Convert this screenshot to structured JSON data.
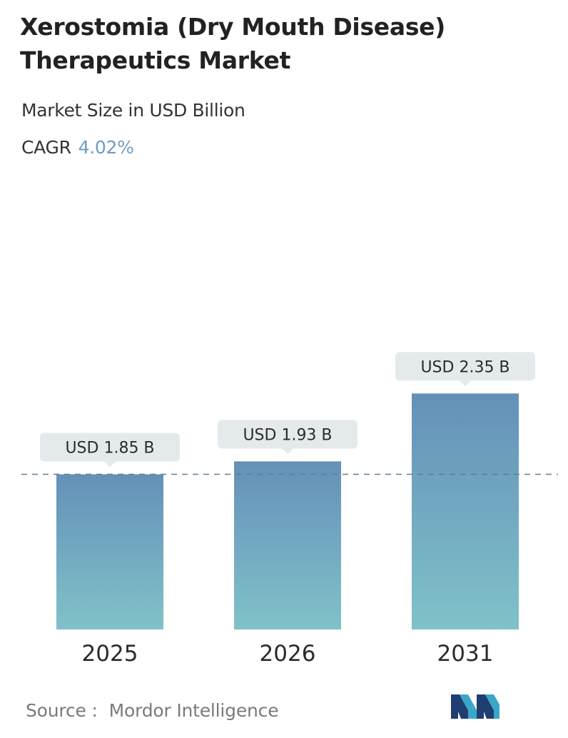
{
  "header": {
    "title": "Xerostomia (Dry Mouth Disease) Therapeutics Market",
    "subtitle": "Market Size in USD Billion",
    "cagr_label": "CAGR",
    "cagr_value": "4.02%"
  },
  "footer": {
    "source_label": "Source :",
    "source_name": "Mordor Intelligence"
  },
  "colors": {
    "bar_top": "#6490b8",
    "bar_bottom": "#80c2c9",
    "label_bg": "#e4eaec",
    "accent": "#6f9cc4",
    "reference_line": "#5b7f99"
  },
  "chart_data": {
    "type": "bar",
    "categories": [
      "2025",
      "2026",
      "2031"
    ],
    "values": [
      1.85,
      1.93,
      2.35
    ],
    "data_labels": [
      "USD 1.85 B",
      "USD 1.93 B",
      "USD 2.35 B"
    ],
    "title": "Xerostomia (Dry Mouth Disease) Therapeutics Market",
    "subtitle": "Market Size in USD Billion",
    "xlabel": "",
    "ylabel": "",
    "grid": false,
    "reference_line_value": 1.85
  }
}
